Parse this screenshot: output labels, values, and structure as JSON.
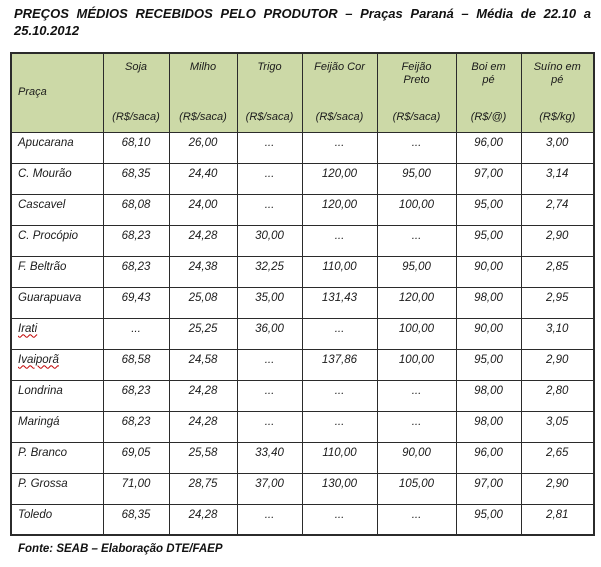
{
  "title": {
    "line1": "PREÇOS MÉDIOS RECEBIDOS PELO PRODUTOR – Praças Paraná – Média de 22.10 a",
    "line2": "25.10.2012"
  },
  "colors": {
    "header_bg": "#CCD9A7",
    "border": "#2b2b2b",
    "misspell_underline": "#c00000"
  },
  "table": {
    "column_keys": [
      "praca",
      "soja",
      "milho",
      "trigo",
      "feijao_cor",
      "feijao_preto",
      "boi_em_pe",
      "suino_em_pe"
    ],
    "columns": [
      {
        "label": "Praça",
        "unit": ""
      },
      {
        "label": "Soja",
        "unit": "(R$/saca)"
      },
      {
        "label": "Milho",
        "unit": "(R$/saca)"
      },
      {
        "label": "Trigo",
        "unit": "(R$/saca)"
      },
      {
        "label": "Feijão Cor",
        "unit": "(R$/saca)"
      },
      {
        "label": "Feijão\nPreto",
        "unit": "(R$/saca)"
      },
      {
        "label": "Boi em\npé",
        "unit": "(R$/@)"
      },
      {
        "label": "Suíno em\npé",
        "unit": "(R$/kg)"
      }
    ],
    "rows": [
      {
        "praca": "Apucarana",
        "misspelled": false,
        "values": [
          "68,10",
          "26,00",
          "...",
          "...",
          "...",
          "96,00",
          "3,00"
        ]
      },
      {
        "praca": "C. Mourão",
        "misspelled": false,
        "values": [
          "68,35",
          "24,40",
          "...",
          "120,00",
          "95,00",
          "97,00",
          "3,14"
        ]
      },
      {
        "praca": "Cascavel",
        "misspelled": false,
        "values": [
          "68,08",
          "24,00",
          "...",
          "120,00",
          "100,00",
          "95,00",
          "2,74"
        ]
      },
      {
        "praca": "C. Procópio",
        "misspelled": false,
        "values": [
          "68,23",
          "24,28",
          "30,00",
          "...",
          "...",
          "95,00",
          "2,90"
        ]
      },
      {
        "praca": "F. Beltrão",
        "misspelled": false,
        "values": [
          "68,23",
          "24,38",
          "32,25",
          "110,00",
          "95,00",
          "90,00",
          "2,85"
        ]
      },
      {
        "praca": "Guarapuava",
        "misspelled": false,
        "values": [
          "69,43",
          "25,08",
          "35,00",
          "131,43",
          "120,00",
          "98,00",
          "2,95"
        ]
      },
      {
        "praca": "Irati",
        "misspelled": true,
        "values": [
          "...",
          "25,25",
          "36,00",
          "...",
          "100,00",
          "90,00",
          "3,10"
        ]
      },
      {
        "praca": "Ivaiporã",
        "misspelled": true,
        "values": [
          "68,58",
          "24,58",
          "...",
          "137,86",
          "100,00",
          "95,00",
          "2,90"
        ]
      },
      {
        "praca": "Londrina",
        "misspelled": false,
        "values": [
          "68,23",
          "24,28",
          "...",
          "...",
          "...",
          "98,00",
          "2,80"
        ]
      },
      {
        "praca": "Maringá",
        "misspelled": false,
        "values": [
          "68,23",
          "24,28",
          "...",
          "...",
          "...",
          "98,00",
          "3,05"
        ]
      },
      {
        "praca": "P. Branco",
        "misspelled": false,
        "values": [
          "69,05",
          "25,58",
          "33,40",
          "110,00",
          "90,00",
          "96,00",
          "2,65"
        ]
      },
      {
        "praca": "P. Grossa",
        "misspelled": false,
        "values": [
          "71,00",
          "28,75",
          "37,00",
          "130,00",
          "105,00",
          "97,00",
          "2,90"
        ]
      },
      {
        "praca": "Toledo",
        "misspelled": false,
        "values": [
          "68,35",
          "24,28",
          "...",
          "...",
          "...",
          "95,00",
          "2,81"
        ]
      }
    ]
  },
  "footer": "Fonte: SEAB – Elaboração DTE/FAEP"
}
